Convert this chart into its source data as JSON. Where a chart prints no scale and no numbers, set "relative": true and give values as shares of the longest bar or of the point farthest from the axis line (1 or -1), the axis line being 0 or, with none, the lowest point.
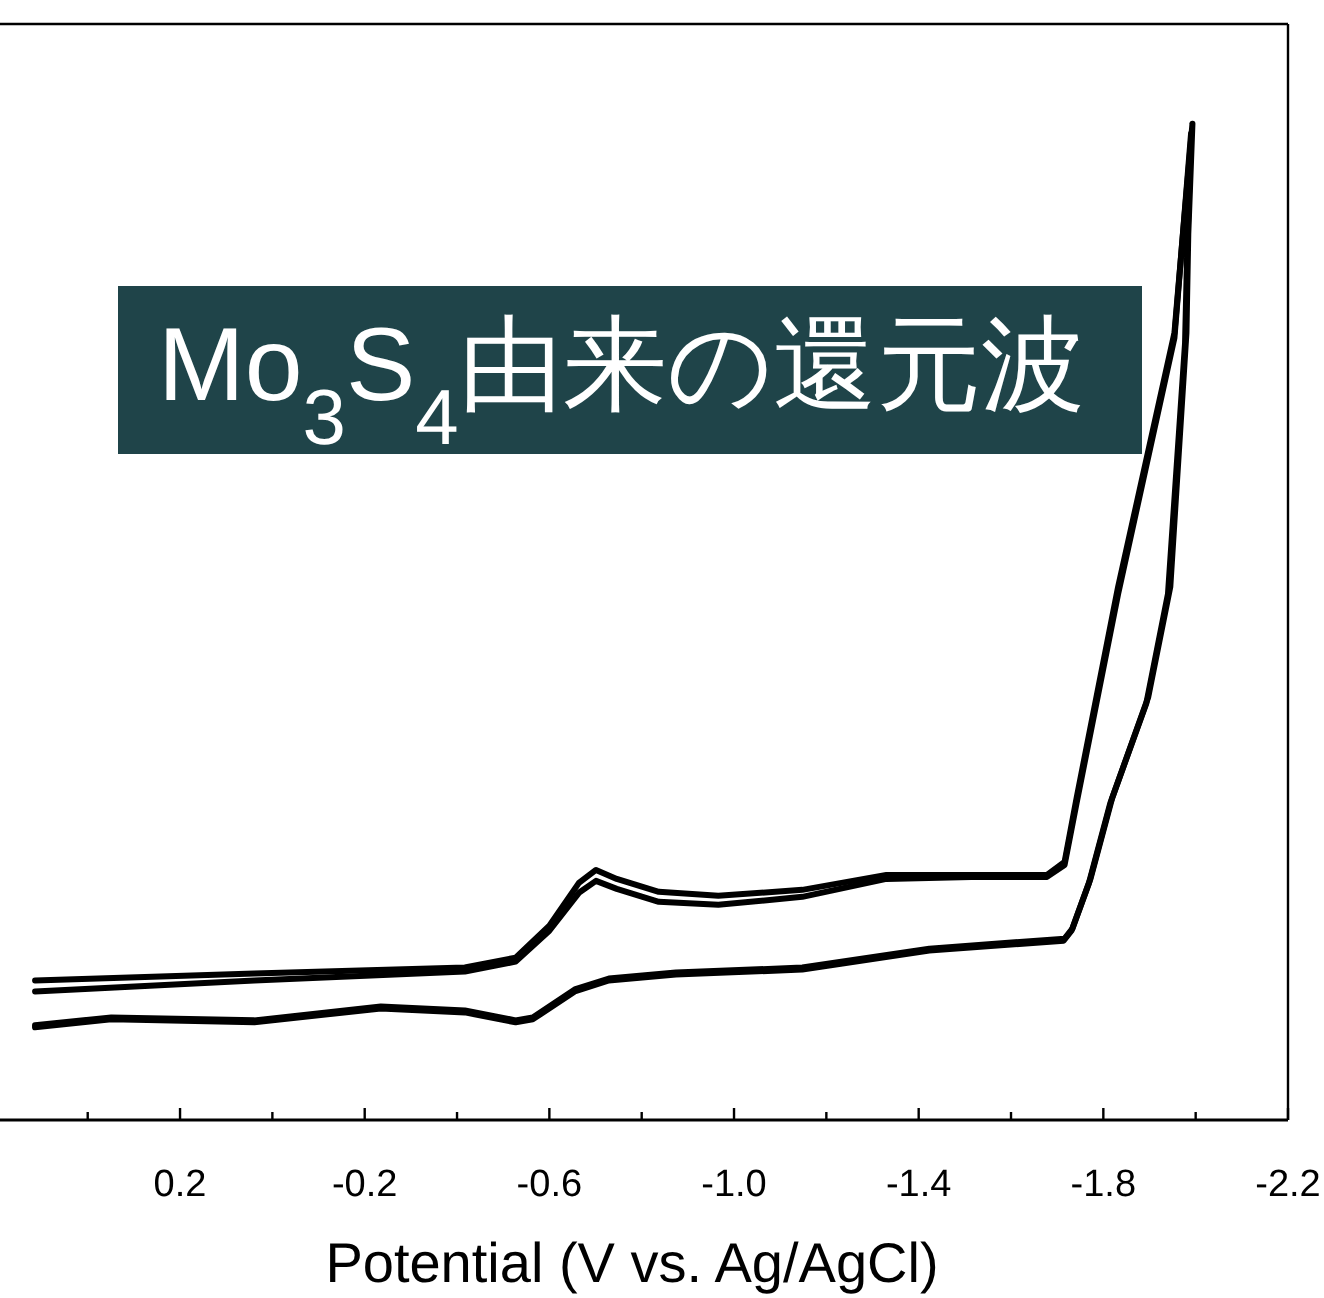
{
  "chart_data": {
    "type": "line",
    "relative": true,
    "xlabel": "Potential (V vs. Ag/AgCl)",
    "annotations": [
      "Mo$_{3}$S$_{4}$由来の還元波"
    ],
    "xlim": [
      0.59,
      -2.2
    ],
    "xticks": [
      {
        "value": 0.4,
        "label": null
      },
      0.2,
      {
        "value": 0.0,
        "label": null
      },
      -0.2,
      {
        "value": -0.4,
        "label": null
      },
      -0.6,
      {
        "value": -0.8,
        "label": null
      },
      {
        "value": -1.0,
        "label": "-1.0"
      },
      {
        "value": -1.2,
        "label": null
      },
      -1.4,
      {
        "value": -1.6,
        "label": null
      },
      -1.8,
      {
        "value": -2.0,
        "label": null
      },
      -2.2
    ],
    "grid": false,
    "marker": "none",
    "line_style": "solid",
    "series": [
      {
        "color": "#000000",
        "x": [
          0.514,
          0.039,
          -0.417,
          -0.527,
          -0.6,
          -0.664,
          -0.701,
          -0.746,
          -0.837,
          -0.966,
          -1.148,
          -1.33,
          -1.514,
          -1.678,
          -1.716,
          -1.742,
          -1.832,
          -1.954,
          -1.993,
          -1.984,
          -1.98,
          -1.945,
          -1.897,
          -1.819,
          -1.772,
          -1.733,
          -1.716,
          -1.423,
          -1.148,
          -0.874,
          -0.729,
          -0.655,
          -0.564,
          -0.527,
          -0.417,
          -0.235,
          0.039,
          0.349,
          0.514
        ],
        "values": [
          0.14,
          0.147,
          0.153,
          0.163,
          0.195,
          0.238,
          0.251,
          0.242,
          0.229,
          0.225,
          0.231,
          0.246,
          0.246,
          0.246,
          0.259,
          0.323,
          0.535,
          0.79,
          1.0,
          0.889,
          0.79,
          0.535,
          0.424,
          0.323,
          0.242,
          0.192,
          0.182,
          0.172,
          0.153,
          0.148,
          0.142,
          0.131,
          0.103,
          0.1,
          0.11,
          0.114,
          0.1,
          0.103,
          0.095
        ]
      },
      {
        "color": "#000000",
        "x": [
          0.514,
          0.039,
          -0.417,
          -0.527,
          -0.6,
          -0.664,
          -0.701,
          -0.746,
          -0.837,
          -0.966,
          -1.148,
          -1.33,
          -1.514,
          -1.678,
          -1.716,
          -1.742,
          -1.832,
          -1.954,
          -1.99,
          -1.982,
          -1.977,
          -1.94,
          -1.893,
          -1.815,
          -1.769,
          -1.731,
          -1.714,
          -1.423,
          -1.148,
          -0.874,
          -0.729,
          -0.655,
          -0.564,
          -0.527,
          -0.417,
          -0.235,
          0.039,
          0.349,
          0.514
        ],
        "values": [
          0.129,
          0.14,
          0.149,
          0.159,
          0.19,
          0.228,
          0.24,
          0.232,
          0.219,
          0.216,
          0.224,
          0.242,
          0.244,
          0.244,
          0.256,
          0.318,
          0.528,
          0.785,
          0.99,
          0.88,
          0.78,
          0.528,
          0.418,
          0.318,
          0.238,
          0.19,
          0.18,
          0.17,
          0.151,
          0.146,
          0.14,
          0.129,
          0.101,
          0.098,
          0.108,
          0.112,
          0.098,
          0.101,
          0.093
        ]
      }
    ]
  }
}
